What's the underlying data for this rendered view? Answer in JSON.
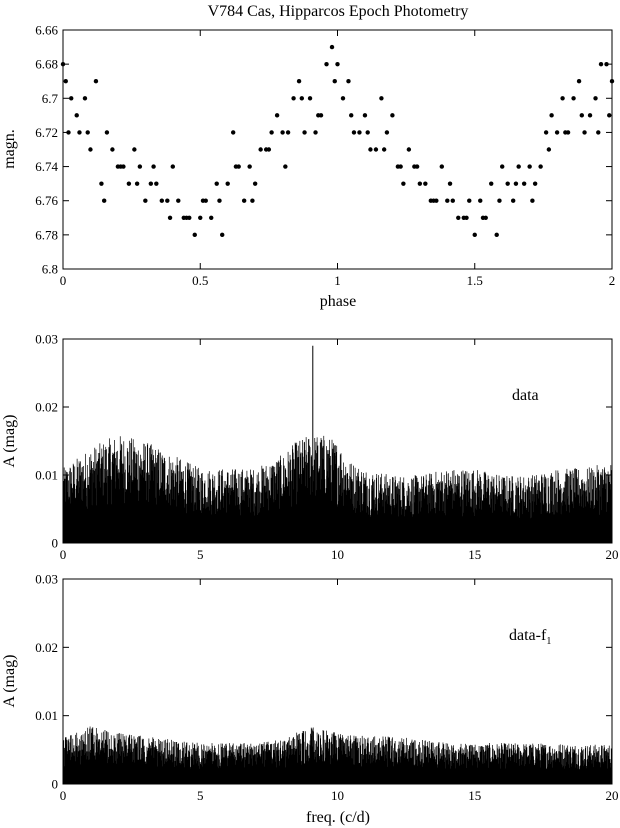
{
  "figure_title": "V784 Cas, Hipparcos Epoch Photometry",
  "chart_data": [
    {
      "type": "scatter",
      "title": "V784 Cas, Hipparcos Epoch Photometry",
      "xlabel": "phase",
      "ylabel": "magn.",
      "xlim": [
        0,
        2
      ],
      "ylim": [
        6.66,
        6.8
      ],
      "y_inverted": true,
      "xticks": [
        0,
        0.5,
        1,
        1.5,
        2
      ],
      "xtick_labels": [
        "0",
        "0.5",
        "1",
        "1.5",
        "2"
      ],
      "yticks": [
        6.66,
        6.68,
        6.7,
        6.72,
        6.74,
        6.76,
        6.78,
        6.8
      ],
      "ytick_labels": [
        "6.66",
        "6.68",
        "6.7",
        "6.72",
        "6.74",
        "6.76",
        "6.78",
        "6.8"
      ],
      "grid": false,
      "marker_color": "#000000",
      "x": [
        0.0,
        0.01,
        0.03,
        0.06,
        0.08,
        0.1,
        0.12,
        0.14,
        0.16,
        0.18,
        0.2,
        0.22,
        0.24,
        0.26,
        0.28,
        0.3,
        0.32,
        0.34,
        0.36,
        0.38,
        0.4,
        0.42,
        0.44,
        0.46,
        0.48,
        0.5,
        0.52,
        0.54,
        0.56,
        0.58,
        0.6,
        0.62,
        0.64,
        0.66,
        0.68,
        0.7,
        0.72,
        0.74,
        0.76,
        0.78,
        0.8,
        0.82,
        0.84,
        0.86,
        0.88,
        0.9,
        0.92,
        0.94,
        0.96,
        0.98,
        1.0,
        1.02,
        1.04,
        1.06,
        1.08,
        1.1,
        1.12,
        1.14,
        1.16,
        1.18,
        1.2,
        1.22,
        1.24,
        1.26,
        1.28,
        1.3,
        1.32,
        1.34,
        1.36,
        1.38,
        1.4,
        1.42,
        1.44,
        1.46,
        1.48,
        1.5,
        1.52,
        1.54,
        1.56,
        1.58,
        1.6,
        1.62,
        1.64,
        1.66,
        1.68,
        1.7,
        1.72,
        1.74,
        1.76,
        1.78,
        1.8,
        1.82,
        1.84,
        1.86,
        1.88,
        1.9,
        1.92,
        1.94,
        1.96,
        1.98,
        2.0,
        0.02,
        0.05,
        0.09,
        0.15,
        0.21,
        0.27,
        0.33,
        0.39,
        0.45,
        0.51,
        0.57,
        0.63,
        0.69,
        0.75,
        0.81,
        0.87,
        0.93,
        0.99,
        1.05,
        1.11,
        1.17,
        1.23,
        1.29,
        1.35,
        1.41,
        1.47,
        1.53,
        1.59,
        1.65,
        1.71,
        1.77,
        1.83,
        1.89,
        1.95,
        1.99
      ],
      "y": [
        6.68,
        6.69,
        6.7,
        6.72,
        6.7,
        6.73,
        6.69,
        6.75,
        6.72,
        6.73,
        6.74,
        6.74,
        6.75,
        6.73,
        6.74,
        6.76,
        6.75,
        6.75,
        6.76,
        6.76,
        6.74,
        6.76,
        6.77,
        6.77,
        6.78,
        6.77,
        6.76,
        6.77,
        6.75,
        6.78,
        6.75,
        6.72,
        6.74,
        6.76,
        6.74,
        6.75,
        6.73,
        6.73,
        6.72,
        6.71,
        6.72,
        6.72,
        6.7,
        6.69,
        6.72,
        6.7,
        6.72,
        6.71,
        6.68,
        6.67,
        6.68,
        6.7,
        6.69,
        6.72,
        6.72,
        6.71,
        6.73,
        6.73,
        6.7,
        6.72,
        6.71,
        6.74,
        6.75,
        6.73,
        6.74,
        6.75,
        6.75,
        6.76,
        6.76,
        6.74,
        6.76,
        6.76,
        6.77,
        6.77,
        6.76,
        6.78,
        6.76,
        6.77,
        6.75,
        6.78,
        6.74,
        6.75,
        6.76,
        6.74,
        6.75,
        6.74,
        6.75,
        6.74,
        6.72,
        6.71,
        6.72,
        6.7,
        6.72,
        6.7,
        6.69,
        6.72,
        6.71,
        6.7,
        6.68,
        6.68,
        6.69,
        6.72,
        6.71,
        6.72,
        6.76,
        6.74,
        6.75,
        6.74,
        6.77,
        6.77,
        6.76,
        6.76,
        6.74,
        6.76,
        6.73,
        6.74,
        6.7,
        6.71,
        6.69,
        6.71,
        6.72,
        6.73,
        6.74,
        6.74,
        6.76,
        6.75,
        6.77,
        6.77,
        6.76,
        6.75,
        6.76,
        6.73,
        6.72,
        6.71,
        6.72,
        6.71
      ]
    },
    {
      "type": "bar",
      "subtype": "periodogram",
      "xlabel": "",
      "ylabel": "A (mag)",
      "xlim": [
        0,
        20
      ],
      "ylim": [
        0,
        0.03
      ],
      "xticks": [
        0,
        5,
        10,
        15,
        20
      ],
      "xtick_labels": [
        "0",
        "5",
        "10",
        "15",
        "20"
      ],
      "yticks": [
        0,
        0.01,
        0.02,
        0.03
      ],
      "ytick_labels": [
        "0",
        "0.01",
        "0.02",
        "0.03"
      ],
      "annotation": "data",
      "peak": {
        "freq": 9.1,
        "amplitude": 0.029
      },
      "envelope_freq": [
        0,
        1,
        2,
        3,
        4,
        5,
        6,
        7,
        8,
        8.5,
        9,
        9.5,
        10,
        10.5,
        11,
        12,
        13,
        14,
        15,
        16,
        17,
        18,
        19,
        20
      ],
      "envelope_amp": [
        0.011,
        0.014,
        0.016,
        0.015,
        0.013,
        0.011,
        0.011,
        0.011,
        0.013,
        0.015,
        0.016,
        0.016,
        0.015,
        0.012,
        0.011,
        0.01,
        0.01,
        0.011,
        0.011,
        0.01,
        0.01,
        0.011,
        0.011,
        0.012
      ]
    },
    {
      "type": "bar",
      "subtype": "periodogram",
      "xlabel": "freq. (c/d)",
      "ylabel": "A (mag)",
      "xlim": [
        0,
        20
      ],
      "ylim": [
        0,
        0.03
      ],
      "xticks": [
        0,
        5,
        10,
        15,
        20
      ],
      "xtick_labels": [
        "0",
        "5",
        "10",
        "15",
        "20"
      ],
      "yticks": [
        0,
        0.01,
        0.02,
        0.03
      ],
      "ytick_labels": [
        "0",
        "0.01",
        "0.02",
        "0.03"
      ],
      "annotation_main": "data-f",
      "annotation_sub": "1",
      "envelope_freq": [
        0,
        1,
        2,
        3,
        4,
        5,
        6,
        7,
        8,
        9,
        10,
        11,
        12,
        13,
        14,
        15,
        16,
        17,
        18,
        19,
        20
      ],
      "envelope_amp": [
        0.0068,
        0.0085,
        0.0075,
        0.007,
        0.0065,
        0.006,
        0.006,
        0.006,
        0.0065,
        0.0085,
        0.0075,
        0.007,
        0.007,
        0.0065,
        0.006,
        0.006,
        0.006,
        0.006,
        0.006,
        0.0058,
        0.0058
      ]
    }
  ]
}
